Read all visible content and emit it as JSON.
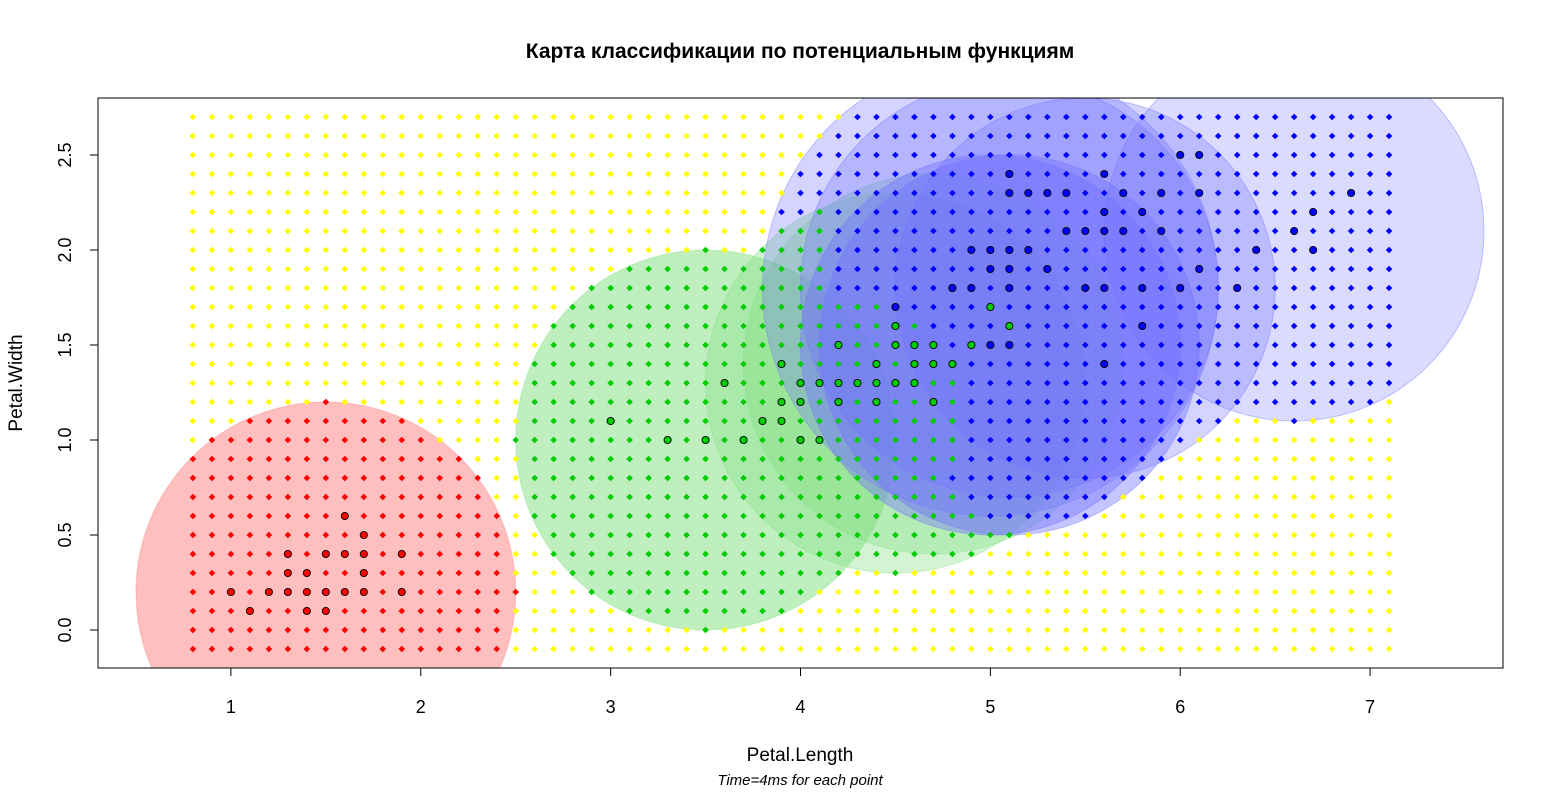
{
  "chart_data": {
    "type": "scatter",
    "title": "Карта классификации по потенциальным функциям",
    "xlabel": "Petal.Length",
    "ylabel": "Petal.Width",
    "subtitle": "Time=4ms for each point",
    "xlim": [
      0.3,
      7.7
    ],
    "ylim": [
      -0.2,
      2.8
    ],
    "x_ticks": [
      "1",
      "2",
      "3",
      "4",
      "5",
      "6",
      "7"
    ],
    "y_ticks": [
      "0.0",
      "0.5",
      "1.0",
      "1.5",
      "2.0",
      "2.5"
    ],
    "grid": false,
    "colors": {
      "setosa": "#ff0000",
      "versicolor": "#00cc00",
      "virginica": "#0000ff",
      "unclassified": "#ffff00",
      "setosa_area": "#ff8080",
      "versicolor_area": "#80e080",
      "virginica_area": "#7070ff"
    },
    "classification_grid": {
      "x_range": [
        0.8,
        7.1
      ],
      "y_range": [
        -0.1,
        2.7
      ],
      "step": 0.1
    },
    "potential_circles": [
      {
        "cls": "setosa",
        "x": 1.5,
        "y": 0.2,
        "r": 1.0,
        "alpha": 0.5
      },
      {
        "cls": "versicolor",
        "x": 3.5,
        "y": 1.0,
        "r": 1.0,
        "alpha": 0.5
      },
      {
        "cls": "versicolor",
        "x": 4.5,
        "y": 1.3,
        "r": 1.0,
        "alpha": 0.35
      },
      {
        "cls": "versicolor",
        "x": 4.7,
        "y": 1.4,
        "r": 1.0,
        "alpha": 0.35
      },
      {
        "cls": "virginica",
        "x": 5.0,
        "y": 1.8,
        "r": 1.2,
        "alpha": 0.3
      },
      {
        "cls": "virginica",
        "x": 5.1,
        "y": 1.8,
        "r": 1.1,
        "alpha": 0.3
      },
      {
        "cls": "virginica",
        "x": 5.5,
        "y": 1.8,
        "r": 1.0,
        "alpha": 0.3
      },
      {
        "cls": "virginica",
        "x": 5.0,
        "y": 1.5,
        "r": 1.0,
        "alpha": 0.4
      },
      {
        "cls": "virginica",
        "x": 5.1,
        "y": 1.5,
        "r": 1.0,
        "alpha": 0.4
      },
      {
        "cls": "virginica",
        "x": 6.6,
        "y": 2.1,
        "r": 1.0,
        "alpha": 0.25
      }
    ],
    "series": [
      {
        "cls": "setosa",
        "points": [
          [
            1.0,
            0.2
          ],
          [
            1.1,
            0.1
          ],
          [
            1.2,
            0.2
          ],
          [
            1.3,
            0.2
          ],
          [
            1.3,
            0.3
          ],
          [
            1.3,
            0.4
          ],
          [
            1.4,
            0.1
          ],
          [
            1.4,
            0.2
          ],
          [
            1.4,
            0.3
          ],
          [
            1.5,
            0.1
          ],
          [
            1.5,
            0.2
          ],
          [
            1.5,
            0.4
          ],
          [
            1.6,
            0.2
          ],
          [
            1.6,
            0.4
          ],
          [
            1.6,
            0.6
          ],
          [
            1.7,
            0.2
          ],
          [
            1.7,
            0.3
          ],
          [
            1.7,
            0.4
          ],
          [
            1.7,
            0.5
          ],
          [
            1.9,
            0.2
          ],
          [
            1.9,
            0.4
          ]
        ]
      },
      {
        "cls": "versicolor",
        "points": [
          [
            3.0,
            1.1
          ],
          [
            3.3,
            1.0
          ],
          [
            3.5,
            1.0
          ],
          [
            3.6,
            1.3
          ],
          [
            3.7,
            1.0
          ],
          [
            3.8,
            1.1
          ],
          [
            3.9,
            1.1
          ],
          [
            3.9,
            1.2
          ],
          [
            3.9,
            1.4
          ],
          [
            4.0,
            1.0
          ],
          [
            4.0,
            1.2
          ],
          [
            4.0,
            1.3
          ],
          [
            4.1,
            1.0
          ],
          [
            4.1,
            1.3
          ],
          [
            4.2,
            1.2
          ],
          [
            4.2,
            1.3
          ],
          [
            4.2,
            1.5
          ],
          [
            4.3,
            1.3
          ],
          [
            4.4,
            1.2
          ],
          [
            4.4,
            1.3
          ],
          [
            4.4,
            1.4
          ],
          [
            4.5,
            1.3
          ],
          [
            4.5,
            1.5
          ],
          [
            4.5,
            1.6
          ],
          [
            4.6,
            1.3
          ],
          [
            4.6,
            1.4
          ],
          [
            4.6,
            1.5
          ],
          [
            4.7,
            1.2
          ],
          [
            4.7,
            1.4
          ],
          [
            4.7,
            1.5
          ],
          [
            4.8,
            1.4
          ],
          [
            4.8,
            1.8
          ],
          [
            4.9,
            1.5
          ],
          [
            5.0,
            1.7
          ],
          [
            5.1,
            1.6
          ]
        ]
      },
      {
        "cls": "virginica",
        "points": [
          [
            4.5,
            1.7
          ],
          [
            4.8,
            1.8
          ],
          [
            4.9,
            1.8
          ],
          [
            4.9,
            2.0
          ],
          [
            5.0,
            1.5
          ],
          [
            5.0,
            1.9
          ],
          [
            5.0,
            2.0
          ],
          [
            5.1,
            1.5
          ],
          [
            5.1,
            1.8
          ],
          [
            5.1,
            1.9
          ],
          [
            5.1,
            2.0
          ],
          [
            5.1,
            2.3
          ],
          [
            5.1,
            2.4
          ],
          [
            5.2,
            2.0
          ],
          [
            5.2,
            2.3
          ],
          [
            5.3,
            1.9
          ],
          [
            5.3,
            2.3
          ],
          [
            5.4,
            2.1
          ],
          [
            5.4,
            2.3
          ],
          [
            5.5,
            1.8
          ],
          [
            5.5,
            2.1
          ],
          [
            5.6,
            1.4
          ],
          [
            5.6,
            1.8
          ],
          [
            5.6,
            2.1
          ],
          [
            5.6,
            2.2
          ],
          [
            5.6,
            2.4
          ],
          [
            5.7,
            2.1
          ],
          [
            5.7,
            2.3
          ],
          [
            5.8,
            1.6
          ],
          [
            5.8,
            1.8
          ],
          [
            5.8,
            2.2
          ],
          [
            5.9,
            2.1
          ],
          [
            5.9,
            2.3
          ],
          [
            6.0,
            1.8
          ],
          [
            6.0,
            2.5
          ],
          [
            6.1,
            1.9
          ],
          [
            6.1,
            2.3
          ],
          [
            6.1,
            2.5
          ],
          [
            6.3,
            1.8
          ],
          [
            6.4,
            2.0
          ],
          [
            6.6,
            2.1
          ],
          [
            6.7,
            2.0
          ],
          [
            6.7,
            2.2
          ],
          [
            6.9,
            2.3
          ]
        ]
      }
    ]
  }
}
